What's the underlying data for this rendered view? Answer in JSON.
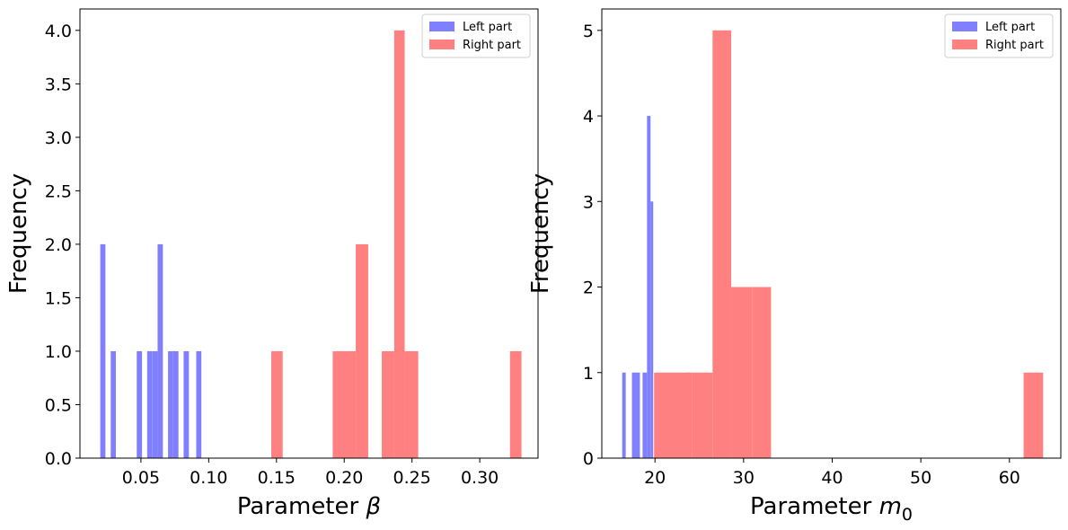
{
  "chart_data": [
    {
      "type": "histogram",
      "xlabel_text": "Parameter ",
      "xlabel_symbol": "β",
      "xlabel_sub": "",
      "ylabel": "Frequency",
      "xlim": [
        0.005,
        0.343
      ],
      "ylim": [
        0,
        4.2
      ],
      "xticks": [
        0.05,
        0.1,
        0.15,
        0.2,
        0.25,
        0.3
      ],
      "xtick_labels": [
        "0.05",
        "0.10",
        "0.15",
        "0.20",
        "0.25",
        "0.30"
      ],
      "yticks": [
        0,
        0.5,
        1.0,
        1.5,
        2.0,
        2.5,
        3.0,
        3.5,
        4.0
      ],
      "ytick_labels": [
        "0.0",
        "0.5",
        "1.0",
        "1.5",
        "2.0",
        "2.5",
        "3.0",
        "3.5",
        "4.0"
      ],
      "legend_position": "top-right",
      "series": [
        {
          "name": "Left part",
          "color": "#8080ff",
          "bins": [
            {
              "x0": 0.02,
              "x1": 0.0238,
              "count": 2
            },
            {
              "x0": 0.0277,
              "x1": 0.0315,
              "count": 1
            },
            {
              "x0": 0.0469,
              "x1": 0.0508,
              "count": 1
            },
            {
              "x0": 0.0546,
              "x1": 0.0585,
              "count": 1
            },
            {
              "x0": 0.0585,
              "x1": 0.0623,
              "count": 1
            },
            {
              "x0": 0.0623,
              "x1": 0.0662,
              "count": 2
            },
            {
              "x0": 0.07,
              "x1": 0.0738,
              "count": 1
            },
            {
              "x0": 0.0738,
              "x1": 0.0777,
              "count": 1
            },
            {
              "x0": 0.0815,
              "x1": 0.0854,
              "count": 1
            },
            {
              "x0": 0.0908,
              "x1": 0.0946,
              "count": 1
            }
          ]
        },
        {
          "name": "Right part",
          "color": "#ff8080",
          "bins": [
            {
              "x0": 0.1462,
              "x1": 0.1546,
              "count": 1
            },
            {
              "x0": 0.1915,
              "x1": 0.2085,
              "count": 1
            },
            {
              "x0": 0.2085,
              "x1": 0.2177,
              "count": 2
            },
            {
              "x0": 0.2277,
              "x1": 0.2369,
              "count": 1
            },
            {
              "x0": 0.2369,
              "x1": 0.2446,
              "count": 4
            },
            {
              "x0": 0.2446,
              "x1": 0.2546,
              "count": 1
            },
            {
              "x0": 0.3223,
              "x1": 0.3308,
              "count": 1
            }
          ]
        }
      ]
    },
    {
      "type": "histogram",
      "xlabel_text": "Parameter ",
      "xlabel_symbol": "m",
      "xlabel_sub": "0",
      "ylabel": "Frequency",
      "xlim": [
        14.0,
        65.8
      ],
      "ylim": [
        0,
        5.25
      ],
      "xticks": [
        20,
        30,
        40,
        50,
        60
      ],
      "xtick_labels": [
        "20",
        "30",
        "40",
        "50",
        "60"
      ],
      "yticks": [
        0,
        1,
        2,
        3,
        4,
        5
      ],
      "ytick_labels": [
        "0",
        "1",
        "2",
        "3",
        "4",
        "5"
      ],
      "legend_position": "top-right",
      "series": [
        {
          "name": "Left part",
          "color": "#8080ff",
          "bins": [
            {
              "x0": 16.3,
              "x1": 16.7,
              "count": 1
            },
            {
              "x0": 17.4,
              "x1": 17.9,
              "count": 1
            },
            {
              "x0": 17.9,
              "x1": 18.3,
              "count": 1
            },
            {
              "x0": 18.6,
              "x1": 19.1,
              "count": 1
            },
            {
              "x0": 19.1,
              "x1": 19.5,
              "count": 4
            },
            {
              "x0": 19.5,
              "x1": 19.8,
              "count": 3
            },
            {
              "x0": 23.6,
              "x1": 24.0,
              "count": 1
            }
          ]
        },
        {
          "name": "Right part",
          "color": "#ff8080",
          "bins": [
            {
              "x0": 19.9,
              "x1": 24.2,
              "count": 1
            },
            {
              "x0": 24.2,
              "x1": 26.5,
              "count": 1
            },
            {
              "x0": 26.5,
              "x1": 28.6,
              "count": 5
            },
            {
              "x0": 28.6,
              "x1": 31.0,
              "count": 2
            },
            {
              "x0": 31.0,
              "x1": 33.1,
              "count": 2
            },
            {
              "x0": 61.6,
              "x1": 63.8,
              "count": 1
            }
          ]
        }
      ]
    }
  ]
}
